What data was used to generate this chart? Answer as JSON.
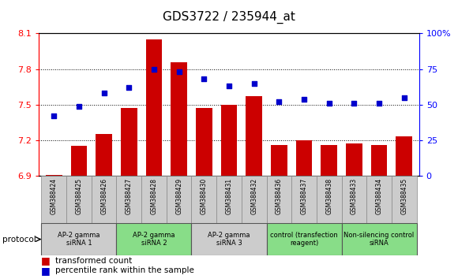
{
  "title": "GDS3722 / 235944_at",
  "samples": [
    "GSM388424",
    "GSM388425",
    "GSM388426",
    "GSM388427",
    "GSM388428",
    "GSM388429",
    "GSM388430",
    "GSM388431",
    "GSM388432",
    "GSM388436",
    "GSM388437",
    "GSM388438",
    "GSM388433",
    "GSM388434",
    "GSM388435"
  ],
  "bar_values": [
    6.91,
    7.15,
    7.25,
    7.47,
    8.05,
    7.86,
    7.47,
    7.5,
    7.57,
    7.16,
    7.2,
    7.16,
    7.17,
    7.16,
    7.23
  ],
  "dot_values": [
    42,
    49,
    58,
    62,
    75,
    73,
    68,
    63,
    65,
    52,
    54,
    51,
    51,
    51,
    55
  ],
  "bar_color": "#cc0000",
  "dot_color": "#0000cc",
  "ylim_left": [
    6.9,
    8.1
  ],
  "ylim_right": [
    0,
    100
  ],
  "yticks_left": [
    6.9,
    7.2,
    7.5,
    7.8,
    8.1
  ],
  "yticks_right": [
    0,
    25,
    50,
    75,
    100
  ],
  "ytick_labels_right": [
    "0",
    "25",
    "50",
    "75",
    "100%"
  ],
  "groups": [
    {
      "label": "AP-2 gamma\nsiRNA 1",
      "indices": [
        0,
        1,
        2
      ],
      "color": "#cccccc"
    },
    {
      "label": "AP-2 gamma\nsiRNA 2",
      "indices": [
        3,
        4,
        5
      ],
      "color": "#88dd88"
    },
    {
      "label": "AP-2 gamma\nsiRNA 3",
      "indices": [
        6,
        7,
        8
      ],
      "color": "#cccccc"
    },
    {
      "label": "control (transfection\nreagent)",
      "indices": [
        9,
        10,
        11
      ],
      "color": "#88dd88"
    },
    {
      "label": "Non-silencing control\nsiRNA",
      "indices": [
        12,
        13,
        14
      ],
      "color": "#88dd88"
    }
  ],
  "sample_box_color": "#cccccc",
  "protocol_label": "protocol",
  "legend_bar_label": "transformed count",
  "legend_dot_label": "percentile rank within the sample",
  "background_color": "#ffffff",
  "plot_bg_color": "#ffffff"
}
